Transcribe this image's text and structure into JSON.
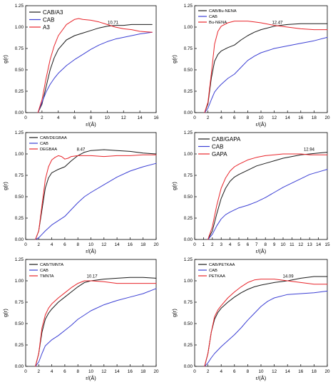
{
  "colors": {
    "black": "#1a1a1a",
    "blue": "#3b3fd4",
    "red": "#e8242a",
    "axis": "#000000"
  },
  "chart_data": [
    {
      "type": "line",
      "xlabel": "r/(Å)",
      "ylabel": "g(r)",
      "xlim": [
        0,
        16
      ],
      "ylim": [
        0,
        1.25
      ],
      "xticks": [
        0,
        2,
        4,
        6,
        8,
        10,
        12,
        14,
        16
      ],
      "yticks": [
        0.0,
        0.25,
        0.5,
        0.75,
        1.0,
        1.25
      ],
      "legend": "top-left",
      "legend_size": "large",
      "annotation": {
        "text": "10.71",
        "x": 10.71,
        "y": 1.02
      },
      "series": [
        {
          "name": "CAB/A3",
          "color": "black",
          "x": [
            1.5,
            2.0,
            2.5,
            3.0,
            3.5,
            4.0,
            5.0,
            6.0,
            7.0,
            8.0,
            9.0,
            10.0,
            11.0,
            12.0,
            13.0,
            14.0,
            15.5
          ],
          "y": [
            0.0,
            0.1,
            0.3,
            0.5,
            0.64,
            0.74,
            0.85,
            0.9,
            0.93,
            0.96,
            0.99,
            1.01,
            1.02,
            1.02,
            1.03,
            1.03,
            1.03
          ]
        },
        {
          "name": "CAB",
          "color": "blue",
          "x": [
            1.5,
            2.0,
            2.5,
            3.0,
            3.5,
            4.0,
            5.0,
            6.0,
            7.0,
            8.0,
            9.0,
            10.0,
            11.0,
            12.0,
            13.0,
            14.0,
            15.5
          ],
          "y": [
            0.0,
            0.12,
            0.24,
            0.33,
            0.4,
            0.46,
            0.55,
            0.62,
            0.68,
            0.74,
            0.79,
            0.83,
            0.86,
            0.88,
            0.9,
            0.92,
            0.94
          ]
        },
        {
          "name": "A3",
          "color": "red",
          "x": [
            1.5,
            2.0,
            2.5,
            3.0,
            3.5,
            4.0,
            5.0,
            6.0,
            6.5,
            7.0,
            8.0,
            9.0,
            10.0,
            11.0,
            12.0,
            13.0,
            14.0,
            15.5
          ],
          "y": [
            0.0,
            0.15,
            0.4,
            0.62,
            0.78,
            0.9,
            1.03,
            1.09,
            1.1,
            1.09,
            1.08,
            1.06,
            1.03,
            1.0,
            0.98,
            0.97,
            0.95,
            0.94
          ]
        }
      ]
    },
    {
      "type": "line",
      "xlabel": "r/(Å)",
      "ylabel": "g(r)",
      "xlim": [
        0,
        20
      ],
      "ylim": [
        0,
        1.25
      ],
      "xticks": [
        0,
        2,
        4,
        6,
        8,
        10,
        12,
        14,
        16,
        18,
        20
      ],
      "yticks": [
        0.0,
        0.25,
        0.5,
        0.75,
        1.0,
        1.25
      ],
      "legend": "top-left",
      "legend_size": "small",
      "annotation": {
        "text": "12.47",
        "x": 12.47,
        "y": 1.02
      },
      "series": [
        {
          "name": "CAB/Bu-NENA",
          "color": "black",
          "x": [
            1.5,
            2.0,
            2.5,
            3.0,
            3.5,
            4.0,
            5.0,
            6.0,
            7.0,
            8.0,
            9.0,
            10.0,
            12.0,
            14.0,
            16.0,
            18.0,
            20.0
          ],
          "y": [
            0.0,
            0.1,
            0.4,
            0.6,
            0.68,
            0.72,
            0.76,
            0.79,
            0.85,
            0.9,
            0.94,
            0.97,
            1.01,
            1.03,
            1.04,
            1.04,
            1.04
          ]
        },
        {
          "name": "CAB",
          "color": "blue",
          "x": [
            1.5,
            2.0,
            2.5,
            3.0,
            3.5,
            4.0,
            5.0,
            6.0,
            7.0,
            8.0,
            9.0,
            10.0,
            12.0,
            14.0,
            16.0,
            18.0,
            20.0
          ],
          "y": [
            0.0,
            0.05,
            0.15,
            0.24,
            0.29,
            0.33,
            0.4,
            0.45,
            0.53,
            0.61,
            0.66,
            0.7,
            0.75,
            0.78,
            0.81,
            0.84,
            0.88
          ]
        },
        {
          "name": "Bu-NENA",
          "color": "red",
          "x": [
            1.5,
            2.0,
            2.5,
            3.0,
            3.5,
            4.0,
            5.0,
            6.0,
            7.0,
            8.0,
            9.0,
            10.0,
            12.0,
            14.0,
            16.0,
            18.0,
            20.0
          ],
          "y": [
            0.0,
            0.12,
            0.45,
            0.8,
            0.95,
            1.01,
            1.05,
            1.07,
            1.07,
            1.07,
            1.06,
            1.05,
            1.02,
            1.0,
            0.98,
            0.97,
            0.97
          ]
        }
      ]
    },
    {
      "type": "line",
      "xlabel": "r/(Å)",
      "ylabel": "g(r)",
      "xlim": [
        0,
        20
      ],
      "ylim": [
        0,
        1.25
      ],
      "xticks": [
        0,
        2,
        4,
        6,
        8,
        10,
        12,
        14,
        16,
        18,
        20
      ],
      "yticks": [
        0.0,
        0.25,
        0.5,
        0.75,
        1.0,
        1.25
      ],
      "legend": "top-left",
      "legend_size": "small",
      "annotation": {
        "text": "8.47",
        "x": 8.47,
        "y": 1.02
      },
      "series": [
        {
          "name": "CAB/DEGBAA",
          "color": "black",
          "x": [
            1.5,
            2.0,
            2.5,
            3.0,
            3.5,
            4.0,
            5.0,
            6.0,
            7.0,
            8.0,
            9.0,
            10.0,
            12.0,
            14.0,
            16.0,
            18.0,
            20.0
          ],
          "y": [
            0.0,
            0.1,
            0.35,
            0.6,
            0.72,
            0.78,
            0.82,
            0.85,
            0.92,
            0.98,
            1.02,
            1.04,
            1.05,
            1.04,
            1.03,
            1.01,
            1.0
          ]
        },
        {
          "name": "CAB",
          "color": "blue",
          "x": [
            1.5,
            2.0,
            2.5,
            3.0,
            4.0,
            5.0,
            6.0,
            7.0,
            8.0,
            9.0,
            10.0,
            12.0,
            14.0,
            16.0,
            18.0,
            20.0
          ],
          "y": [
            0.0,
            0.02,
            0.06,
            0.1,
            0.17,
            0.22,
            0.27,
            0.35,
            0.43,
            0.5,
            0.55,
            0.64,
            0.73,
            0.8,
            0.85,
            0.89
          ]
        },
        {
          "name": "DEGBAA",
          "color": "red",
          "x": [
            1.5,
            2.0,
            2.5,
            3.0,
            3.5,
            4.0,
            4.5,
            5.0,
            5.5,
            6.0,
            6.5,
            7.0,
            8.0,
            9.0,
            10.0,
            12.0,
            14.0,
            16.0,
            18.0,
            20.0
          ],
          "y": [
            0.0,
            0.1,
            0.4,
            0.7,
            0.85,
            0.93,
            0.96,
            0.98,
            0.97,
            0.94,
            0.95,
            0.97,
            0.98,
            0.98,
            0.98,
            0.97,
            0.98,
            0.98,
            0.99,
            0.99
          ]
        }
      ]
    },
    {
      "type": "line",
      "xlabel": "r/(Å)",
      "ylabel": "g(r)",
      "xlim": [
        0,
        15
      ],
      "ylim": [
        0,
        1.25
      ],
      "xticks": [
        0,
        1,
        2,
        3,
        4,
        5,
        6,
        7,
        8,
        9,
        10,
        11,
        12,
        13,
        14,
        15
      ],
      "yticks": [
        0.0,
        0.25,
        0.5,
        0.75,
        1.0,
        1.25
      ],
      "legend": "top-left",
      "legend_size": "large",
      "annotation": {
        "text": "12.94",
        "x": 12.94,
        "y": 1.02
      },
      "series": [
        {
          "name": "CAB/GAPA",
          "color": "black",
          "x": [
            1.5,
            2.0,
            2.5,
            3.0,
            3.5,
            4.0,
            4.5,
            5.0,
            6.0,
            7.0,
            8.0,
            9.0,
            10.0,
            11.0,
            12.0,
            13.0,
            14.0,
            15.0
          ],
          "y": [
            0.0,
            0.1,
            0.3,
            0.48,
            0.6,
            0.68,
            0.73,
            0.76,
            0.81,
            0.86,
            0.89,
            0.92,
            0.95,
            0.97,
            0.99,
            1.0,
            1.01,
            1.02
          ]
        },
        {
          "name": "CAB",
          "color": "blue",
          "x": [
            1.5,
            2.0,
            2.5,
            3.0,
            3.5,
            4.0,
            5.0,
            6.0,
            7.0,
            8.0,
            9.0,
            10.0,
            11.0,
            12.0,
            13.0,
            14.0,
            15.0
          ],
          "y": [
            0.0,
            0.06,
            0.16,
            0.24,
            0.29,
            0.32,
            0.37,
            0.4,
            0.44,
            0.49,
            0.55,
            0.61,
            0.66,
            0.71,
            0.76,
            0.79,
            0.82
          ]
        },
        {
          "name": "GAPA",
          "color": "red",
          "x": [
            1.5,
            2.0,
            2.5,
            3.0,
            3.5,
            4.0,
            4.5,
            5.0,
            6.0,
            7.0,
            8.0,
            9.0,
            10.0,
            11.0,
            12.0,
            13.0,
            14.0,
            15.0
          ],
          "y": [
            0.0,
            0.15,
            0.4,
            0.6,
            0.72,
            0.8,
            0.85,
            0.88,
            0.93,
            0.96,
            0.98,
            0.99,
            1.0,
            1.0,
            1.0,
            0.99,
            0.99,
            0.99
          ]
        }
      ]
    },
    {
      "type": "line",
      "xlabel": "r/(Å)",
      "ylabel": "g(r)",
      "xlim": [
        0,
        20
      ],
      "ylim": [
        0,
        1.25
      ],
      "xticks": [
        0,
        2,
        4,
        6,
        8,
        10,
        12,
        14,
        16,
        18,
        20
      ],
      "yticks": [
        0.0,
        0.25,
        0.5,
        0.75,
        1.0,
        1.25
      ],
      "legend": "top-left",
      "legend_size": "small",
      "annotation": {
        "text": "10.17",
        "x": 10.17,
        "y": 1.02
      },
      "series": [
        {
          "name": "CAB/TMNTA",
          "color": "black",
          "x": [
            1.5,
            2.0,
            2.5,
            3.0,
            3.5,
            4.0,
            5.0,
            6.0,
            7.0,
            8.0,
            9.0,
            10.0,
            12.0,
            14.0,
            16.0,
            18.0,
            20.0
          ],
          "y": [
            0.0,
            0.15,
            0.4,
            0.55,
            0.62,
            0.67,
            0.75,
            0.81,
            0.87,
            0.93,
            0.98,
            1.0,
            1.02,
            1.03,
            1.04,
            1.04,
            1.03
          ]
        },
        {
          "name": "CAB",
          "color": "blue",
          "x": [
            1.5,
            2.0,
            2.5,
            3.0,
            4.0,
            5.0,
            6.0,
            7.0,
            8.0,
            9.0,
            10.0,
            12.0,
            14.0,
            16.0,
            18.0,
            20.0
          ],
          "y": [
            0.0,
            0.05,
            0.15,
            0.24,
            0.31,
            0.36,
            0.42,
            0.48,
            0.55,
            0.6,
            0.65,
            0.72,
            0.77,
            0.81,
            0.85,
            0.91
          ]
        },
        {
          "name": "TMNTA",
          "color": "red",
          "x": [
            1.5,
            2.0,
            2.5,
            3.0,
            3.5,
            4.0,
            5.0,
            6.0,
            7.0,
            8.0,
            9.0,
            10.0,
            12.0,
            14.0,
            16.0,
            18.0,
            20.0
          ],
          "y": [
            0.0,
            0.15,
            0.45,
            0.6,
            0.68,
            0.73,
            0.8,
            0.86,
            0.92,
            0.97,
            1.0,
            1.0,
            0.99,
            0.97,
            0.97,
            0.97,
            0.97
          ]
        }
      ]
    },
    {
      "type": "line",
      "xlabel": "r/(Å)",
      "ylabel": "g(r)",
      "xlim": [
        0,
        20
      ],
      "ylim": [
        0,
        1.25
      ],
      "xticks": [
        0,
        2,
        4,
        6,
        8,
        10,
        12,
        14,
        16,
        18,
        20
      ],
      "yticks": [
        0.0,
        0.25,
        0.5,
        0.75,
        1.0,
        1.25
      ],
      "legend": "top-left",
      "legend_size": "small",
      "annotation": {
        "text": "14.09",
        "x": 14.09,
        "y": 1.02
      },
      "series": [
        {
          "name": "CAB/PETKAA",
          "color": "black",
          "x": [
            1.5,
            2.0,
            2.5,
            3.0,
            3.5,
            4.0,
            5.0,
            6.0,
            7.0,
            8.0,
            9.0,
            10.0,
            12.0,
            14.0,
            16.0,
            18.0,
            20.0
          ],
          "y": [
            0.0,
            0.15,
            0.4,
            0.55,
            0.63,
            0.68,
            0.75,
            0.81,
            0.86,
            0.9,
            0.93,
            0.95,
            0.98,
            1.0,
            1.03,
            1.05,
            1.05
          ]
        },
        {
          "name": "CAB",
          "color": "blue",
          "x": [
            1.5,
            2.0,
            2.5,
            3.0,
            4.0,
            5.0,
            6.0,
            7.0,
            8.0,
            9.0,
            10.0,
            11.0,
            12.0,
            14.0,
            16.0,
            18.0,
            20.0
          ],
          "y": [
            0.0,
            0.04,
            0.1,
            0.15,
            0.23,
            0.3,
            0.37,
            0.45,
            0.54,
            0.62,
            0.7,
            0.76,
            0.8,
            0.84,
            0.85,
            0.86,
            0.88
          ]
        },
        {
          "name": "PETKAA",
          "color": "red",
          "x": [
            1.5,
            2.0,
            2.5,
            3.0,
            3.5,
            4.0,
            5.0,
            6.0,
            7.0,
            8.0,
            9.0,
            10.0,
            12.0,
            14.0,
            16.0,
            18.0,
            20.0
          ],
          "y": [
            0.0,
            0.15,
            0.4,
            0.58,
            0.66,
            0.71,
            0.8,
            0.87,
            0.93,
            0.98,
            1.01,
            1.02,
            1.02,
            1.0,
            0.98,
            0.96,
            0.96
          ]
        }
      ]
    }
  ]
}
